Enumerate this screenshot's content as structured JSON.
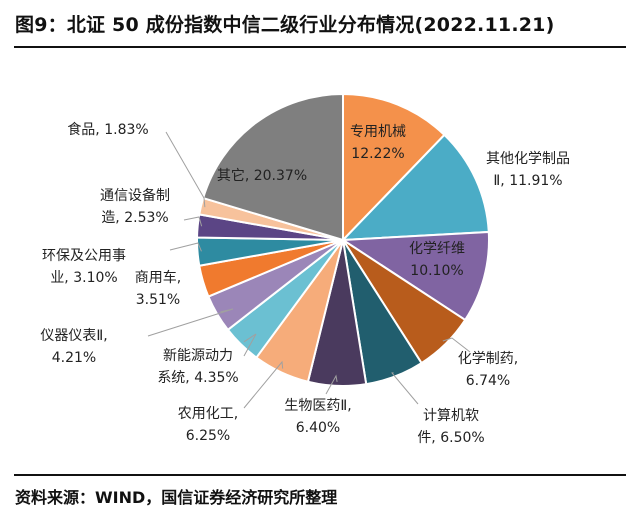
{
  "title": "图9：北证 50 成份指数中信二级行业分布情况(2022.11.21)",
  "source": "资料来源：WIND，国信证券经济研究所整理",
  "chart_data": {
    "type": "pie",
    "title": "图9：北证 50 成份指数中信二级行业分布情况(2022.11.21)",
    "slices": [
      {
        "name": "专用机械",
        "value": 12.22,
        "label": "12.22%",
        "color": "#F4914B"
      },
      {
        "name": "其他化学制品Ⅱ",
        "value": 11.91,
        "label": "11.91%",
        "color": "#4BACC6"
      },
      {
        "name": "化学纤维",
        "value": 10.1,
        "label": "10.10%",
        "color": "#8064A2"
      },
      {
        "name": "化学制药",
        "value": 6.74,
        "label": "6.74%",
        "color": "#B85C1C"
      },
      {
        "name": "计算机软件",
        "value": 6.5,
        "label": "6.50%",
        "color": "#215E6E"
      },
      {
        "name": "生物医药Ⅱ",
        "value": 6.4,
        "label": "6.40%",
        "color": "#4A3A5E"
      },
      {
        "name": "农用化工",
        "value": 6.25,
        "label": "6.25%",
        "color": "#F6AC7A"
      },
      {
        "name": "新能源动力系统",
        "value": 4.35,
        "label": "4.35%",
        "color": "#6BC0D2"
      },
      {
        "name": "仪器仪表Ⅱ",
        "value": 4.21,
        "label": "4.21%",
        "color": "#9B86B8"
      },
      {
        "name": "商用车",
        "value": 3.51,
        "label": "3.51%",
        "color": "#F07A2E"
      },
      {
        "name": "环保及公用事业",
        "value": 3.1,
        "label": "3.10%",
        "color": "#2E8BA1"
      },
      {
        "name": "通信设备制造",
        "value": 2.53,
        "label": "2.53%",
        "color": "#5B4585"
      },
      {
        "name": "食品",
        "value": 1.83,
        "label": "1.83%",
        "color": "#F7C29C"
      },
      {
        "name": "其它",
        "value": 20.37,
        "label": "20.37%",
        "color": "#7F7F7F"
      }
    ]
  }
}
